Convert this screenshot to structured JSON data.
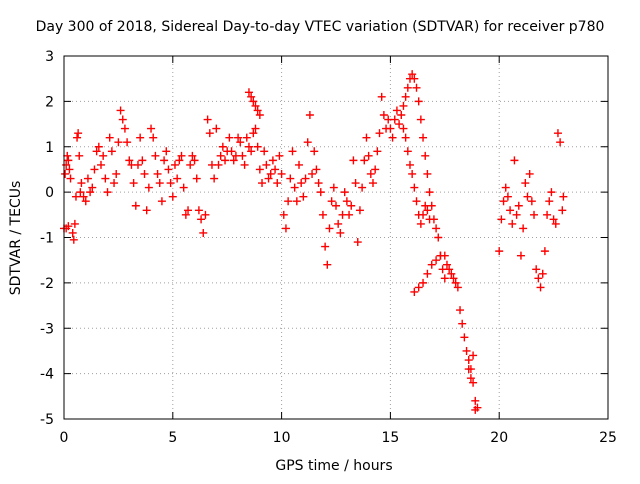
{
  "chart_data": {
    "type": "scatter",
    "title": "Day 300 of 2018, Sidereal Day-to-day VTEC variation (SDTVAR) for receiver p780",
    "xlabel": "GPS time / hours",
    "ylabel": "SDTVAR / TECUs",
    "xlim": [
      0,
      25
    ],
    "ylim": [
      -5,
      3
    ],
    "x_ticks": [
      0,
      5,
      10,
      15,
      20,
      25
    ],
    "y_ticks": [
      3,
      2,
      1,
      0,
      -1,
      -2,
      -3,
      -4,
      -5
    ],
    "x_tick_labels": [
      "0",
      "5",
      "10",
      "15",
      "20",
      "25"
    ],
    "y_tick_labels": [
      "3",
      "2",
      "1",
      "0",
      "-1",
      "-2",
      "-3",
      "-4",
      "-5"
    ],
    "grid": true,
    "marker": "+",
    "colors": {
      "series": "#ff0000",
      "axis": "#000000",
      "grid": "#a0a0a0"
    },
    "series": [
      {
        "name": "SDTVAR",
        "points": [
          [
            0.0,
            -0.8
          ],
          [
            0.1,
            -0.8
          ],
          [
            0.2,
            -0.75
          ],
          [
            0.05,
            0.4
          ],
          [
            0.1,
            0.6
          ],
          [
            0.15,
            0.8
          ],
          [
            0.2,
            0.7
          ],
          [
            0.25,
            0.5
          ],
          [
            0.3,
            0.3
          ],
          [
            0.4,
            -0.9
          ],
          [
            0.45,
            -1.05
          ],
          [
            0.5,
            -0.7
          ],
          [
            0.55,
            -0.1
          ],
          [
            0.6,
            1.2
          ],
          [
            0.65,
            1.3
          ],
          [
            0.7,
            0.8
          ],
          [
            0.75,
            0.0
          ],
          [
            0.8,
            0.2
          ],
          [
            0.9,
            -0.1
          ],
          [
            1.0,
            -0.2
          ],
          [
            1.1,
            0.3
          ],
          [
            1.2,
            0.0
          ],
          [
            1.3,
            0.1
          ],
          [
            1.4,
            0.5
          ],
          [
            1.5,
            0.9
          ],
          [
            1.6,
            1.0
          ],
          [
            1.7,
            0.6
          ],
          [
            1.8,
            0.8
          ],
          [
            1.9,
            0.3
          ],
          [
            2.0,
            0.0
          ],
          [
            2.1,
            1.2
          ],
          [
            2.2,
            0.9
          ],
          [
            2.3,
            0.2
          ],
          [
            2.4,
            0.4
          ],
          [
            2.5,
            1.1
          ],
          [
            2.6,
            1.8
          ],
          [
            2.7,
            1.6
          ],
          [
            2.8,
            1.4
          ],
          [
            2.9,
            1.1
          ],
          [
            3.0,
            0.7
          ],
          [
            3.1,
            0.6
          ],
          [
            3.2,
            0.2
          ],
          [
            3.3,
            -0.3
          ],
          [
            3.4,
            0.6
          ],
          [
            3.5,
            1.2
          ],
          [
            3.6,
            0.7
          ],
          [
            3.7,
            0.4
          ],
          [
            3.8,
            -0.4
          ],
          [
            3.9,
            0.1
          ],
          [
            4.0,
            1.4
          ],
          [
            4.1,
            1.2
          ],
          [
            4.2,
            0.8
          ],
          [
            4.3,
            0.4
          ],
          [
            4.4,
            0.2
          ],
          [
            4.5,
            -0.2
          ],
          [
            4.6,
            0.7
          ],
          [
            4.7,
            0.9
          ],
          [
            4.8,
            0.5
          ],
          [
            4.9,
            0.2
          ],
          [
            5.0,
            -0.1
          ],
          [
            5.1,
            0.6
          ],
          [
            5.2,
            0.3
          ],
          [
            5.3,
            0.7
          ],
          [
            5.4,
            0.8
          ],
          [
            5.5,
            0.1
          ],
          [
            5.6,
            -0.5
          ],
          [
            5.7,
            -0.4
          ],
          [
            5.8,
            0.6
          ],
          [
            5.9,
            0.8
          ],
          [
            6.0,
            0.7
          ],
          [
            6.1,
            0.3
          ],
          [
            6.2,
            -0.4
          ],
          [
            6.3,
            -0.6
          ],
          [
            6.4,
            -0.9
          ],
          [
            6.5,
            -0.5
          ],
          [
            6.6,
            1.6
          ],
          [
            6.7,
            1.3
          ],
          [
            6.8,
            0.6
          ],
          [
            6.9,
            0.3
          ],
          [
            7.0,
            1.4
          ],
          [
            7.1,
            0.6
          ],
          [
            7.2,
            0.8
          ],
          [
            7.3,
            1.0
          ],
          [
            7.4,
            0.7
          ],
          [
            7.5,
            0.9
          ],
          [
            7.6,
            1.2
          ],
          [
            7.7,
            0.9
          ],
          [
            7.8,
            0.7
          ],
          [
            7.9,
            0.8
          ],
          [
            8.0,
            1.2
          ],
          [
            8.1,
            1.1
          ],
          [
            8.2,
            0.8
          ],
          [
            8.3,
            0.6
          ],
          [
            8.4,
            1.2
          ],
          [
            8.5,
            1.0
          ],
          [
            8.6,
            0.9
          ],
          [
            8.7,
            1.3
          ],
          [
            8.8,
            1.4
          ],
          [
            8.9,
            1.0
          ],
          [
            9.0,
            0.5
          ],
          [
            9.1,
            0.2
          ],
          [
            9.2,
            0.9
          ],
          [
            9.3,
            0.6
          ],
          [
            9.4,
            0.3
          ],
          [
            9.5,
            0.4
          ],
          [
            8.5,
            2.2
          ],
          [
            8.6,
            2.1
          ],
          [
            8.7,
            2.0
          ],
          [
            8.8,
            1.9
          ],
          [
            8.9,
            1.8
          ],
          [
            9.0,
            1.7
          ],
          [
            9.6,
            0.7
          ],
          [
            9.7,
            0.5
          ],
          [
            9.8,
            0.2
          ],
          [
            9.9,
            0.8
          ],
          [
            10.0,
            0.4
          ],
          [
            10.1,
            -0.5
          ],
          [
            10.2,
            -0.8
          ],
          [
            10.3,
            -0.2
          ],
          [
            10.4,
            0.3
          ],
          [
            10.5,
            0.9
          ],
          [
            10.6,
            0.1
          ],
          [
            10.7,
            -0.2
          ],
          [
            10.8,
            0.6
          ],
          [
            10.9,
            0.2
          ],
          [
            11.0,
            -0.1
          ],
          [
            11.1,
            0.3
          ],
          [
            11.2,
            1.1
          ],
          [
            11.3,
            1.7
          ],
          [
            11.4,
            0.4
          ],
          [
            11.5,
            0.9
          ],
          [
            11.6,
            0.5
          ],
          [
            11.7,
            0.2
          ],
          [
            11.8,
            0.0
          ],
          [
            11.9,
            -0.5
          ],
          [
            12.0,
            -1.2
          ],
          [
            12.1,
            -1.6
          ],
          [
            12.2,
            -0.8
          ],
          [
            12.3,
            -0.2
          ],
          [
            12.4,
            0.1
          ],
          [
            12.5,
            -0.3
          ],
          [
            12.6,
            -0.7
          ],
          [
            12.7,
            -0.9
          ],
          [
            12.8,
            -0.5
          ],
          [
            12.9,
            0.0
          ],
          [
            13.0,
            -0.2
          ],
          [
            13.1,
            -0.5
          ],
          [
            13.2,
            -0.3
          ],
          [
            13.3,
            0.7
          ],
          [
            13.4,
            0.2
          ],
          [
            13.5,
            -1.1
          ],
          [
            13.6,
            -0.4
          ],
          [
            13.7,
            0.1
          ],
          [
            13.8,
            0.7
          ],
          [
            13.9,
            1.2
          ],
          [
            14.0,
            0.8
          ],
          [
            14.1,
            0.4
          ],
          [
            14.2,
            0.2
          ],
          [
            14.3,
            0.5
          ],
          [
            14.4,
            0.9
          ],
          [
            14.5,
            1.3
          ],
          [
            14.6,
            2.1
          ],
          [
            14.7,
            1.7
          ],
          [
            14.8,
            1.4
          ],
          [
            14.9,
            1.6
          ],
          [
            15.0,
            1.4
          ],
          [
            15.1,
            1.2
          ],
          [
            15.2,
            1.6
          ],
          [
            15.3,
            1.8
          ],
          [
            15.4,
            1.5
          ],
          [
            15.5,
            1.7
          ],
          [
            15.6,
            1.9
          ],
          [
            15.7,
            2.1
          ],
          [
            15.8,
            2.3
          ],
          [
            15.9,
            2.5
          ],
          [
            16.0,
            2.6
          ],
          [
            16.1,
            2.5
          ],
          [
            16.2,
            2.3
          ],
          [
            16.3,
            2.0
          ],
          [
            16.4,
            1.6
          ],
          [
            16.5,
            1.2
          ],
          [
            16.6,
            0.8
          ],
          [
            16.7,
            0.4
          ],
          [
            16.8,
            0.0
          ],
          [
            16.9,
            -0.3
          ],
          [
            17.0,
            -0.6
          ],
          [
            17.1,
            -0.8
          ],
          [
            17.2,
            -1.0
          ],
          [
            17.3,
            -1.4
          ],
          [
            17.4,
            -1.7
          ],
          [
            17.5,
            -1.9
          ],
          [
            15.6,
            1.4
          ],
          [
            15.7,
            1.2
          ],
          [
            15.8,
            0.9
          ],
          [
            15.9,
            0.6
          ],
          [
            16.0,
            0.4
          ],
          [
            16.1,
            0.1
          ],
          [
            16.2,
            -0.2
          ],
          [
            16.3,
            -0.5
          ],
          [
            16.4,
            -0.7
          ],
          [
            16.5,
            -0.5
          ],
          [
            16.6,
            -0.3
          ],
          [
            16.7,
            -0.4
          ],
          [
            16.8,
            -0.6
          ],
          [
            16.1,
            -2.2
          ],
          [
            16.3,
            -2.1
          ],
          [
            16.5,
            -2.0
          ],
          [
            16.7,
            -1.8
          ],
          [
            16.9,
            -1.6
          ],
          [
            17.1,
            -1.5
          ],
          [
            17.3,
            -1.4
          ],
          [
            17.5,
            -1.4
          ],
          [
            17.6,
            -1.6
          ],
          [
            17.7,
            -1.7
          ],
          [
            17.8,
            -1.8
          ],
          [
            17.9,
            -1.9
          ],
          [
            18.0,
            -2.0
          ],
          [
            18.1,
            -2.1
          ],
          [
            18.2,
            -2.6
          ],
          [
            18.3,
            -2.9
          ],
          [
            18.4,
            -3.2
          ],
          [
            18.5,
            -3.5
          ],
          [
            18.6,
            -3.7
          ],
          [
            18.7,
            -3.9
          ],
          [
            18.8,
            -4.2
          ],
          [
            18.9,
            -4.6
          ],
          [
            19.0,
            -4.75
          ],
          [
            18.9,
            -4.8
          ],
          [
            18.6,
            -3.9
          ],
          [
            18.7,
            -4.1
          ],
          [
            18.8,
            -3.6
          ],
          [
            20.0,
            -1.3
          ],
          [
            20.1,
            -0.6
          ],
          [
            20.2,
            -0.2
          ],
          [
            20.3,
            0.1
          ],
          [
            20.4,
            -0.1
          ],
          [
            20.5,
            -0.4
          ],
          [
            20.6,
            -0.7
          ],
          [
            20.7,
            0.7
          ],
          [
            20.8,
            -0.5
          ],
          [
            20.9,
            -0.3
          ],
          [
            21.0,
            -1.4
          ],
          [
            21.1,
            -0.8
          ],
          [
            21.2,
            0.2
          ],
          [
            21.3,
            -0.1
          ],
          [
            21.4,
            0.4
          ],
          [
            21.5,
            -0.2
          ],
          [
            21.6,
            -0.5
          ],
          [
            21.7,
            -1.7
          ],
          [
            21.8,
            -1.9
          ],
          [
            21.9,
            -2.1
          ],
          [
            22.0,
            -1.8
          ],
          [
            22.1,
            -1.3
          ],
          [
            22.2,
            -0.5
          ],
          [
            22.3,
            -0.2
          ],
          [
            22.4,
            0.0
          ],
          [
            22.5,
            -0.6
          ],
          [
            22.6,
            -0.7
          ],
          [
            22.7,
            1.3
          ],
          [
            22.8,
            1.1
          ],
          [
            22.9,
            -0.4
          ],
          [
            22.95,
            -0.1
          ]
        ]
      }
    ]
  }
}
